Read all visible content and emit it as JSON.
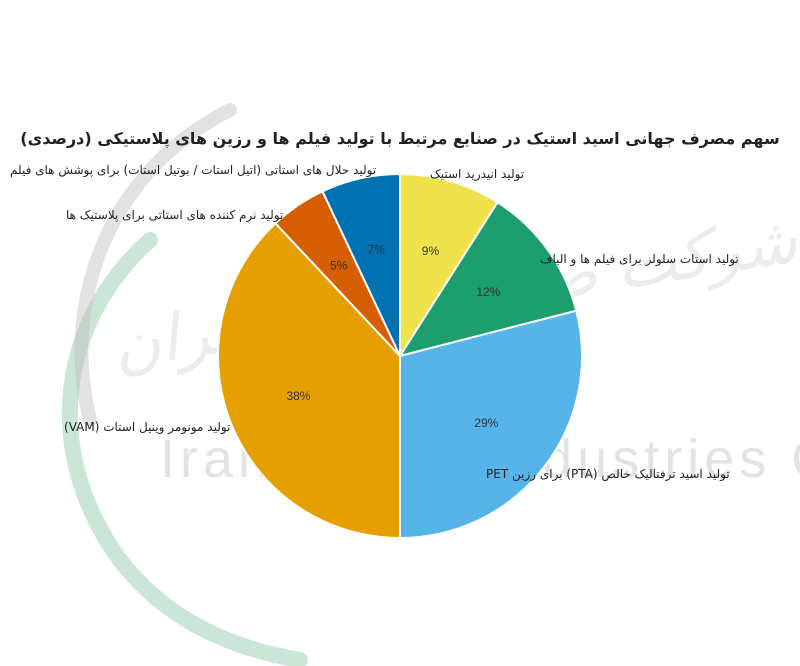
{
  "watermark": {
    "fa_text": "شرکت صنایع استیک ایران",
    "en_text": "Iran Acetic Industries Co",
    "colors": {
      "green": "#2e9a5a",
      "grey": "#bfbfbf"
    }
  },
  "chart_data": {
    "type": "pie",
    "title": "سهم مصرف جهانی اسید استیک در صنایع مرتبط با تولید فیلم ها و رزین های پلاستیکی (درصدی)",
    "slices": [
      {
        "label": "تولید انیدرید استیک",
        "value": 9,
        "pct_label": "9%",
        "color": "#f0e24a"
      },
      {
        "label": "تولید استات سلولز برای فیلم ها و الیاف",
        "value": 12,
        "pct_label": "12%",
        "color": "#1c9e6e"
      },
      {
        "label": "تولید اسید ترفتالیک خالص (PTA) برای رزین PET",
        "value": 29,
        "pct_label": "29%",
        "color": "#56b4e9"
      },
      {
        "label": "تولید مونومر وینیل استات (VAM)",
        "value": 38,
        "pct_label": "38%",
        "color": "#e69f00"
      },
      {
        "label": "تولید نرم کننده های استاتی برای پلاستیک ها",
        "value": 5,
        "pct_label": "5%",
        "color": "#d55e00"
      },
      {
        "label": "تولید حلال های استاتی (اتیل استات / بوتیل استات) برای پوشش های فیلم",
        "value": 7,
        "pct_label": "7%",
        "color": "#0072b2"
      }
    ]
  }
}
